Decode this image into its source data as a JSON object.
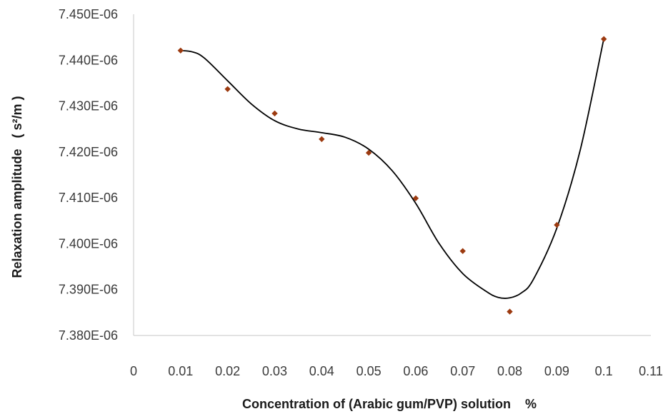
{
  "chart_data": {
    "type": "scatter",
    "xlabel": "Concentration of (Arabic gum/PVP) solution    %",
    "ylabel": "Relaxation amplitude   ( s²/m )",
    "xlim": [
      0,
      0.11
    ],
    "ylim": [
      7.38e-06,
      7.45e-06
    ],
    "x_ticks": [
      "0",
      "0.01",
      "0.02",
      "0.03",
      "0.04",
      "0.05",
      "0.06",
      "0.07",
      "0.08",
      "0.09",
      "0.1",
      "0.11"
    ],
    "y_ticks": [
      "7.380E-06",
      "7.390E-06",
      "7.400E-06",
      "7.410E-06",
      "7.420E-06",
      "7.430E-06",
      "7.440E-06",
      "7.450E-06"
    ],
    "series": [
      {
        "x": [
          0.01,
          0.02,
          0.03,
          0.04,
          0.05,
          0.06,
          0.07,
          0.08,
          0.09,
          0.1
        ],
        "y": [
          7.4421e-06,
          7.4337e-06,
          7.4284e-06,
          7.4228e-06,
          7.4198e-06,
          7.4099e-06,
          7.3984e-06,
          7.3852e-06,
          7.4041e-06,
          7.4446e-06
        ]
      }
    ],
    "trendline": {
      "type": "polynomial",
      "x": [
        0.01,
        0.0125,
        0.015,
        0.02,
        0.025,
        0.03,
        0.035,
        0.04,
        0.045,
        0.05,
        0.055,
        0.06,
        0.065,
        0.07,
        0.075,
        0.0775,
        0.08,
        0.0825,
        0.085,
        0.09,
        0.095,
        0.1
      ],
      "y": [
        7.4421e-06,
        7.4418e-06,
        7.4405e-06,
        7.4355e-06,
        7.4305e-06,
        7.4268e-06,
        7.425e-06,
        7.4242e-06,
        7.4232e-06,
        7.4206e-06,
        7.4159e-06,
        7.4088e-06,
        7.4e-06,
        7.3935e-06,
        7.3896e-06,
        7.3883e-06,
        7.3882e-06,
        7.3893e-06,
        7.3922e-06,
        7.4034e-06,
        7.4205e-06,
        7.4447e-06
      ]
    },
    "marker_color": "#9c3a10",
    "line_color": "#000000",
    "grid": false,
    "legend": "none"
  }
}
